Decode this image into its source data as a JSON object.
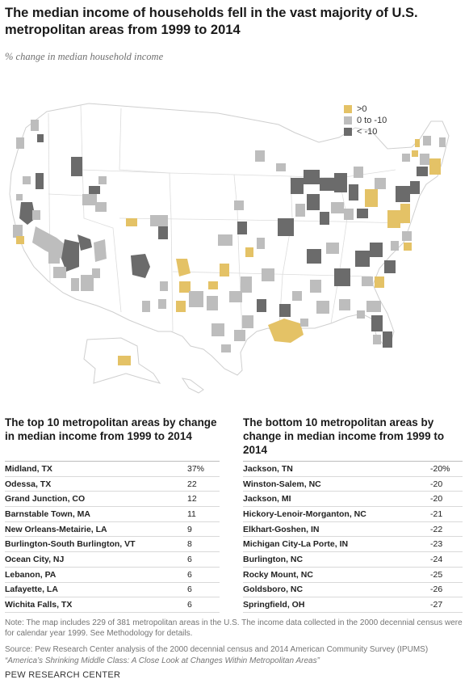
{
  "header": {
    "title": "The median income of households fell in the vast majority of U.S. metropolitan areas from 1999 to 2014",
    "subtitle": "% change in median household income"
  },
  "legend": {
    "items": [
      {
        "label": ">0",
        "color": "#e4c266"
      },
      {
        "label": "0 to -10",
        "color": "#bdbdbd"
      },
      {
        "label": "< -10",
        "color": "#6b6b6b"
      }
    ]
  },
  "map": {
    "base_fill": "#ffffff",
    "border_color": "#d6d6d6"
  },
  "top_table": {
    "title": "The top 10 metropolitan areas by change in median income from 1999 to 2014",
    "rows": [
      {
        "name": "Midland, TX",
        "value": "37%"
      },
      {
        "name": "Odessa, TX",
        "value": "22"
      },
      {
        "name": "Grand Junction, CO",
        "value": "12"
      },
      {
        "name": "Barnstable Town, MA",
        "value": "11"
      },
      {
        "name": "New Orleans-Metairie, LA",
        "value": "9"
      },
      {
        "name": "Burlington-South Burlington, VT",
        "value": "8"
      },
      {
        "name": "Ocean City, NJ",
        "value": "6"
      },
      {
        "name": "Lebanon, PA",
        "value": "6"
      },
      {
        "name": "Lafayette, LA",
        "value": "6"
      },
      {
        "name": "Wichita Falls, TX",
        "value": "6"
      }
    ]
  },
  "bottom_table": {
    "title": "The bottom 10 metropolitan areas by change in median income from 1999 to 2014",
    "rows": [
      {
        "name": "Jackson, TN",
        "value": "-20%"
      },
      {
        "name": "Winston-Salem, NC",
        "value": "-20"
      },
      {
        "name": "Jackson, MI",
        "value": "-20"
      },
      {
        "name": "Hickory-Lenoir-Morganton, NC",
        "value": "-21"
      },
      {
        "name": "Elkhart-Goshen, IN",
        "value": "-22"
      },
      {
        "name": "Michigan City-La Porte, IN",
        "value": "-23"
      },
      {
        "name": "Burlington, NC",
        "value": "-24"
      },
      {
        "name": "Rocky Mount, NC",
        "value": "-25"
      },
      {
        "name": "Goldsboro, NC",
        "value": "-26"
      },
      {
        "name": "Springfield, OH",
        "value": "-27"
      }
    ]
  },
  "footer": {
    "note": "Note: The map includes 229 of 381 metropolitan areas in the U.S. The income data collected in the 2000 decennial census were for calendar year 1999. See Methodology for details.",
    "source": "Source: Pew Research Center analysis of the 2000 decennial census and 2014 American Community Survey (IPUMS)",
    "report": "“America’s Shrinking Middle Class: A Close Look at Changes Within Metropolitan Areas”",
    "brand": "PEW RESEARCH CENTER"
  }
}
